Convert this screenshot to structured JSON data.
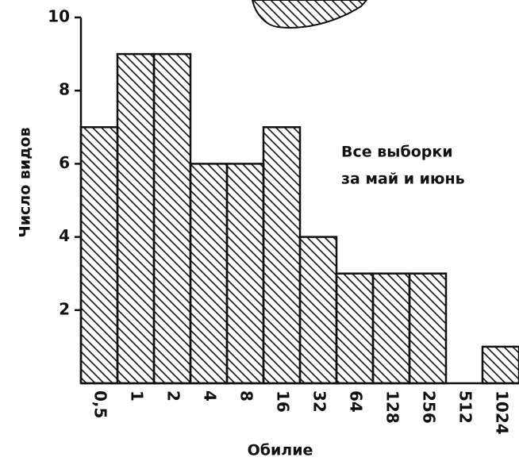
{
  "chart_data": {
    "type": "bar",
    "annotation": [
      "Все выборки",
      "за май и июнь"
    ],
    "x_label": "Обилие",
    "y_label": "Число видов",
    "categories": [
      "0,5",
      "1",
      "2",
      "4",
      "8",
      "16",
      "32",
      "64",
      "128",
      "256",
      "512",
      "1024"
    ],
    "values": [
      7,
      9,
      9,
      6,
      6,
      7,
      4,
      3,
      3,
      3,
      0,
      1
    ],
    "color": "#111111",
    "ylim": [
      0,
      10
    ],
    "yticks": [
      2,
      4,
      6,
      8,
      10
    ]
  }
}
